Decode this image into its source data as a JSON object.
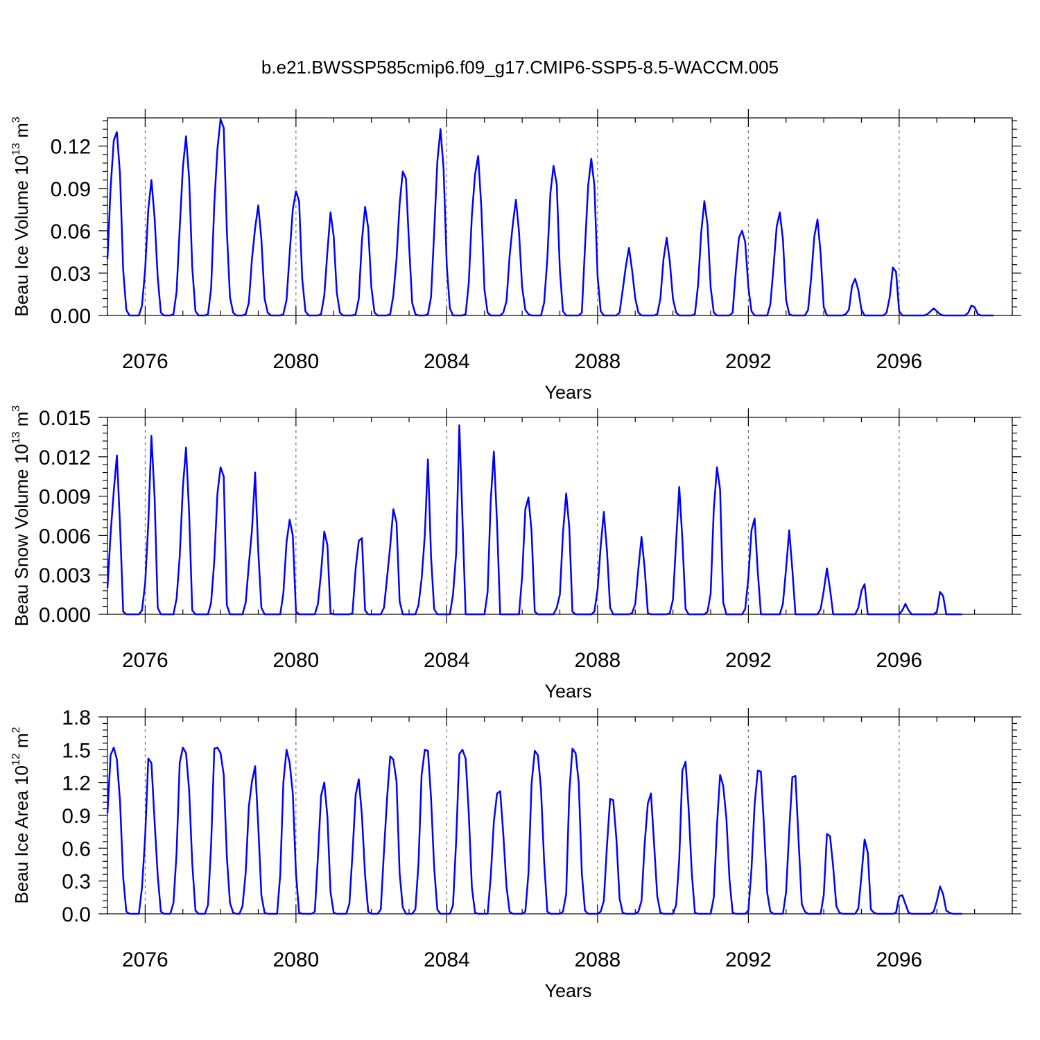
{
  "title": "b.e21.BWSSP585cmip6.f09_g17.CMIP6-SSP5-8.5-WACCM.005",
  "series_color": "#0000ff",
  "chart_data": [
    {
      "type": "line",
      "ylabel_text": "Beau Ice Volume 10",
      "ylabel_exp": "13",
      "ylabel_unit": "m",
      "ylabel_unit_exp": "3",
      "xlabel": "Years",
      "xlim": [
        2075.0,
        2099.0
      ],
      "ylim": [
        0,
        0.14
      ],
      "x_ticks": [
        2076,
        2080,
        2084,
        2088,
        2092,
        2096
      ],
      "x_tick_labels": [
        "2076",
        "2080",
        "2084",
        "2088",
        "2092",
        "2096"
      ],
      "y_ticks": [
        0,
        0.03,
        0.06,
        0.09,
        0.12
      ],
      "y_tick_labels": [
        "0.00",
        "0.03",
        "0.06",
        "0.09",
        "0.12"
      ],
      "peaks": [
        0.13,
        0.096,
        0.127,
        0.139,
        0.078,
        0.088,
        0.073,
        0.077,
        0.102,
        0.132,
        0.113,
        0.082,
        0.106,
        0.111,
        0.048,
        0.055,
        0.081,
        0.06,
        0.073,
        0.068,
        0.026,
        0.034,
        0.005,
        0.007
      ],
      "x_start": 2075.0,
      "values": [
        0.04,
        0.09,
        0.124,
        0.13,
        0.1,
        0.032,
        0.004,
        0.0,
        0.0,
        0.0,
        0.0,
        0.007,
        0.033,
        0.075,
        0.096,
        0.069,
        0.027,
        0.002,
        0.0,
        0.0,
        0.0,
        0.001,
        0.017,
        0.062,
        0.105,
        0.127,
        0.097,
        0.034,
        0.003,
        0.0,
        0.0,
        0.0,
        0.001,
        0.019,
        0.079,
        0.118,
        0.139,
        0.133,
        0.06,
        0.013,
        0.002,
        0.0,
        0.0,
        0.0,
        0.001,
        0.009,
        0.04,
        0.062,
        0.078,
        0.054,
        0.012,
        0.002,
        0.0,
        0.0,
        0.0,
        0.0,
        0.001,
        0.011,
        0.044,
        0.075,
        0.088,
        0.081,
        0.026,
        0.003,
        0.0,
        0.0,
        0.0,
        0.0,
        0.001,
        0.014,
        0.045,
        0.073,
        0.056,
        0.016,
        0.002,
        0.0,
        0.0,
        0.0,
        0.0,
        0.001,
        0.012,
        0.053,
        0.077,
        0.062,
        0.02,
        0.002,
        0.0,
        0.0,
        0.0,
        0.0,
        0.001,
        0.014,
        0.04,
        0.079,
        0.102,
        0.097,
        0.05,
        0.009,
        0.001,
        0.0,
        0.0,
        0.0,
        0.001,
        0.013,
        0.059,
        0.109,
        0.132,
        0.104,
        0.035,
        0.005,
        0.0,
        0.0,
        0.0,
        0.0,
        0.001,
        0.023,
        0.071,
        0.1,
        0.113,
        0.077,
        0.018,
        0.002,
        0.0,
        0.0,
        0.0,
        0.0,
        0.002,
        0.01,
        0.042,
        0.064,
        0.082,
        0.059,
        0.02,
        0.004,
        0.001,
        0.0,
        0.0,
        0.0,
        0.0,
        0.009,
        0.04,
        0.087,
        0.106,
        0.093,
        0.032,
        0.003,
        0.0,
        0.0,
        0.0,
        0.0,
        0.0,
        0.002,
        0.048,
        0.092,
        0.111,
        0.092,
        0.028,
        0.003,
        0.0,
        0.0,
        0.0,
        0.0,
        0.0,
        0.002,
        0.018,
        0.035,
        0.048,
        0.032,
        0.012,
        0.002,
        0.0,
        0.0,
        0.0,
        0.0,
        0.0,
        0.001,
        0.012,
        0.04,
        0.055,
        0.038,
        0.012,
        0.002,
        0.0,
        0.0,
        0.0,
        0.0,
        0.0,
        0.001,
        0.022,
        0.059,
        0.081,
        0.064,
        0.02,
        0.002,
        0.0,
        0.0,
        0.0,
        0.0,
        0.0,
        0.002,
        0.031,
        0.055,
        0.06,
        0.052,
        0.02,
        0.003,
        0.0,
        0.0,
        0.0,
        0.0,
        0.0,
        0.008,
        0.034,
        0.063,
        0.073,
        0.054,
        0.011,
        0.001,
        0.0,
        0.0,
        0.0,
        0.0,
        0.0,
        0.004,
        0.027,
        0.056,
        0.068,
        0.044,
        0.006,
        0.0,
        0.0,
        0.0,
        0.0,
        0.0,
        0.0,
        0.001,
        0.004,
        0.021,
        0.026,
        0.018,
        0.004,
        0.0,
        0.0,
        0.0,
        0.0,
        0.0,
        0.0,
        0.0,
        0.002,
        0.013,
        0.034,
        0.031,
        0.003,
        0.0,
        0.0,
        0.0,
        0.0,
        0.0,
        0.0,
        0.0,
        0.0,
        0.001,
        0.003,
        0.005,
        0.003,
        0.001,
        0.0,
        0.0,
        0.0,
        0.0,
        0.0,
        0.0,
        0.0,
        0.0,
        0.002,
        0.007,
        0.006,
        0.001,
        0.0,
        0.0,
        0.0,
        0.0,
        0.0
      ]
    },
    {
      "type": "line",
      "ylabel_text": "Beau Snow Volume 10",
      "ylabel_exp": "13",
      "ylabel_unit": "m",
      "ylabel_unit_exp": "3",
      "xlabel": "Years",
      "xlim": [
        2075.0,
        2099.0
      ],
      "ylim": [
        0,
        0.015
      ],
      "x_ticks": [
        2076,
        2080,
        2084,
        2088,
        2092,
        2096
      ],
      "x_tick_labels": [
        "2076",
        "2080",
        "2084",
        "2088",
        "2092",
        "2096"
      ],
      "y_ticks": [
        0,
        0.003,
        0.006,
        0.009,
        0.012,
        0.015
      ],
      "y_tick_labels": [
        "0.000",
        "0.003",
        "0.006",
        "0.009",
        "0.012",
        "0.015"
      ],
      "peaks": [
        0.0121,
        0.0136,
        0.0127,
        0.0112,
        0.0108,
        0.0072,
        0.0063,
        0.0058,
        0.008,
        0.0118,
        0.0144,
        0.0124,
        0.0089,
        0.0092,
        0.0078,
        0.0059,
        0.0097,
        0.0112,
        0.0073,
        0.0064,
        0.0035,
        0.0023,
        0.0008,
        0.0017
      ],
      "x_start": 2075.0,
      "values": [
        0.002,
        0.0061,
        0.0094,
        0.0121,
        0.0068,
        0.0002,
        0.0,
        0.0,
        0.0,
        0.0,
        0.0,
        0.0003,
        0.0024,
        0.0069,
        0.0136,
        0.0089,
        0.0005,
        0.0,
        0.0,
        0.0,
        0.0,
        0.0,
        0.0012,
        0.0044,
        0.0097,
        0.0127,
        0.0077,
        0.0003,
        0.0,
        0.0,
        0.0,
        0.0,
        0.0,
        0.0009,
        0.0041,
        0.0092,
        0.0112,
        0.0105,
        0.0007,
        0.0,
        0.0,
        0.0,
        0.0,
        0.0,
        0.0009,
        0.0038,
        0.0064,
        0.0108,
        0.0048,
        0.0005,
        0.0,
        0.0,
        0.0,
        0.0,
        0.0,
        0.0,
        0.0016,
        0.0055,
        0.0072,
        0.006,
        0.0002,
        0.0,
        0.0,
        0.0,
        0.0,
        0.0,
        0.0,
        0.0008,
        0.0032,
        0.0063,
        0.0053,
        0.0001,
        0.0,
        0.0,
        0.0,
        0.0,
        0.0,
        0.0,
        0.0001,
        0.0035,
        0.0056,
        0.0058,
        0.0003,
        0.0,
        0.0,
        0.0,
        0.0,
        0.0,
        0.0005,
        0.0028,
        0.0052,
        0.008,
        0.007,
        0.001,
        0.0,
        0.0,
        0.0,
        0.0,
        0.0,
        0.0007,
        0.0027,
        0.006,
        0.0118,
        0.0044,
        0.0004,
        0.0,
        0.0,
        0.0,
        0.0,
        0.0,
        0.0015,
        0.0047,
        0.0144,
        0.0073,
        0.0,
        0.0,
        0.0,
        0.0,
        0.0,
        0.0,
        0.0,
        0.0017,
        0.0087,
        0.0124,
        0.0069,
        0.0,
        0.0,
        0.0,
        0.0,
        0.0,
        0.0,
        0.0,
        0.0029,
        0.008,
        0.0089,
        0.0063,
        0.0002,
        0.0,
        0.0,
        0.0,
        0.0,
        0.0,
        0.0,
        0.0005,
        0.0015,
        0.0062,
        0.0092,
        0.0066,
        0.0002,
        0.0,
        0.0,
        0.0,
        0.0,
        0.0,
        0.0,
        0.0002,
        0.0019,
        0.0052,
        0.0078,
        0.0048,
        0.0005,
        0.0,
        0.0,
        0.0,
        0.0,
        0.0,
        0.0,
        0.0001,
        0.0008,
        0.0035,
        0.0059,
        0.0035,
        0.0001,
        0.0,
        0.0,
        0.0,
        0.0,
        0.0,
        0.0,
        0.0001,
        0.0011,
        0.0056,
        0.0097,
        0.0057,
        0.0004,
        0.0,
        0.0,
        0.0,
        0.0,
        0.0,
        0.0,
        0.0002,
        0.0016,
        0.008,
        0.0112,
        0.0095,
        0.0009,
        0.0,
        0.0,
        0.0,
        0.0,
        0.0,
        0.0,
        0.0004,
        0.0028,
        0.0064,
        0.0073,
        0.0032,
        0.0,
        0.0,
        0.0,
        0.0,
        0.0,
        0.0,
        0.0,
        0.0008,
        0.0035,
        0.0064,
        0.0034,
        0.0,
        0.0,
        0.0,
        0.0,
        0.0,
        0.0,
        0.0,
        0.0,
        0.0004,
        0.0018,
        0.0035,
        0.0019,
        0.0,
        0.0,
        0.0,
        0.0,
        0.0,
        0.0,
        0.0,
        0.0,
        0.0005,
        0.0018,
        0.0023,
        0.0,
        0.0,
        0.0,
        0.0,
        0.0,
        0.0,
        0.0,
        0.0,
        0.0,
        0.0,
        0.0,
        0.0003,
        0.0008,
        0.0003,
        0.0,
        0.0,
        0.0,
        0.0,
        0.0,
        0.0,
        0.0,
        0.0,
        0.0002,
        0.0017,
        0.0014,
        0.0,
        0.0,
        0.0,
        0.0,
        0.0,
        0.0
      ]
    },
    {
      "type": "line",
      "ylabel_text": "Beau Ice Area 10",
      "ylabel_exp": "12",
      "ylabel_unit": "m",
      "ylabel_unit_exp": "2",
      "xlabel": "Years",
      "xlim": [
        2075.0,
        2099.0
      ],
      "ylim": [
        0,
        1.8
      ],
      "x_ticks": [
        2076,
        2080,
        2084,
        2088,
        2092,
        2096
      ],
      "x_tick_labels": [
        "2076",
        "2080",
        "2084",
        "2088",
        "2092",
        "2096"
      ],
      "y_ticks": [
        0,
        0.3,
        0.6,
        0.9,
        1.2,
        1.5,
        1.8
      ],
      "y_tick_labels": [
        "0.0",
        "0.3",
        "0.6",
        "0.9",
        "1.2",
        "1.5",
        "1.8"
      ],
      "peaks": [
        1.52,
        1.42,
        1.52,
        1.52,
        1.35,
        1.5,
        1.2,
        1.23,
        1.44,
        1.5,
        1.5,
        1.12,
        1.49,
        1.51,
        1.05,
        1.1,
        1.39,
        1.27,
        1.31,
        1.26,
        0.73,
        0.68,
        0.17,
        0.25
      ],
      "x_start": 2075.0,
      "values": [
        0.92,
        1.45,
        1.52,
        1.41,
        1.03,
        0.33,
        0.02,
        0.0,
        0.0,
        0.0,
        0.0,
        0.24,
        0.71,
        1.42,
        1.38,
        0.84,
        0.35,
        0.02,
        0.0,
        0.0,
        0.0,
        0.1,
        0.56,
        1.38,
        1.52,
        1.47,
        1.13,
        0.46,
        0.03,
        0.0,
        0.0,
        0.0,
        0.08,
        0.63,
        1.51,
        1.52,
        1.47,
        1.27,
        0.52,
        0.1,
        0.01,
        0.0,
        0.0,
        0.07,
        0.38,
        0.98,
        1.21,
        1.35,
        0.8,
        0.17,
        0.01,
        0.0,
        0.0,
        0.0,
        0.0,
        0.36,
        1.2,
        1.5,
        1.38,
        1.1,
        0.37,
        0.01,
        0.0,
        0.0,
        0.0,
        0.0,
        0.02,
        0.53,
        1.08,
        1.2,
        0.89,
        0.2,
        0.01,
        0.0,
        0.0,
        0.0,
        0.0,
        0.09,
        0.55,
        1.09,
        1.23,
        0.9,
        0.35,
        0.02,
        0.0,
        0.0,
        0.0,
        0.04,
        0.57,
        1.06,
        1.44,
        1.41,
        1.21,
        0.37,
        0.06,
        0.0,
        0.0,
        0.0,
        0.04,
        0.46,
        1.27,
        1.5,
        1.49,
        1.06,
        0.42,
        0.04,
        0.0,
        0.0,
        0.0,
        0.0,
        0.08,
        0.68,
        1.46,
        1.5,
        1.42,
        0.92,
        0.24,
        0.01,
        0.0,
        0.0,
        0.0,
        0.0,
        0.34,
        0.84,
        1.1,
        1.12,
        0.73,
        0.25,
        0.02,
        0.0,
        0.0,
        0.0,
        0.0,
        0.02,
        0.37,
        1.19,
        1.49,
        1.45,
        1.14,
        0.48,
        0.02,
        0.0,
        0.0,
        0.0,
        0.0,
        0.02,
        0.18,
        1.11,
        1.51,
        1.47,
        1.2,
        0.37,
        0.03,
        0.0,
        0.0,
        0.0,
        0.0,
        0.02,
        0.12,
        0.63,
        1.05,
        1.04,
        0.68,
        0.14,
        0.01,
        0.0,
        0.0,
        0.0,
        0.0,
        0.02,
        0.12,
        0.64,
        1.01,
        1.1,
        0.64,
        0.16,
        0.01,
        0.0,
        0.0,
        0.0,
        0.0,
        0.08,
        0.5,
        1.31,
        1.39,
        0.95,
        0.37,
        0.01,
        0.0,
        0.0,
        0.0,
        0.0,
        0.0,
        0.15,
        0.81,
        1.27,
        1.17,
        0.87,
        0.31,
        0.01,
        0.0,
        0.0,
        0.0,
        0.0,
        0.03,
        0.41,
        1.0,
        1.31,
        1.3,
        0.79,
        0.19,
        0.02,
        0.0,
        0.0,
        0.0,
        0.0,
        0.2,
        0.76,
        1.25,
        1.26,
        0.66,
        0.09,
        0.02,
        0.0,
        0.0,
        0.0,
        0.0,
        0.0,
        0.17,
        0.73,
        0.71,
        0.43,
        0.07,
        0.01,
        0.0,
        0.0,
        0.0,
        0.0,
        0.0,
        0.05,
        0.35,
        0.68,
        0.56,
        0.04,
        0.01,
        0.0,
        0.0,
        0.0,
        0.0,
        0.0,
        0.0,
        0.01,
        0.16,
        0.17,
        0.09,
        0.01,
        0.0,
        0.0,
        0.0,
        0.0,
        0.0,
        0.0,
        0.0,
        0.02,
        0.12,
        0.25,
        0.18,
        0.03,
        0.01,
        0.0,
        0.0,
        0.0,
        0.0
      ]
    }
  ]
}
